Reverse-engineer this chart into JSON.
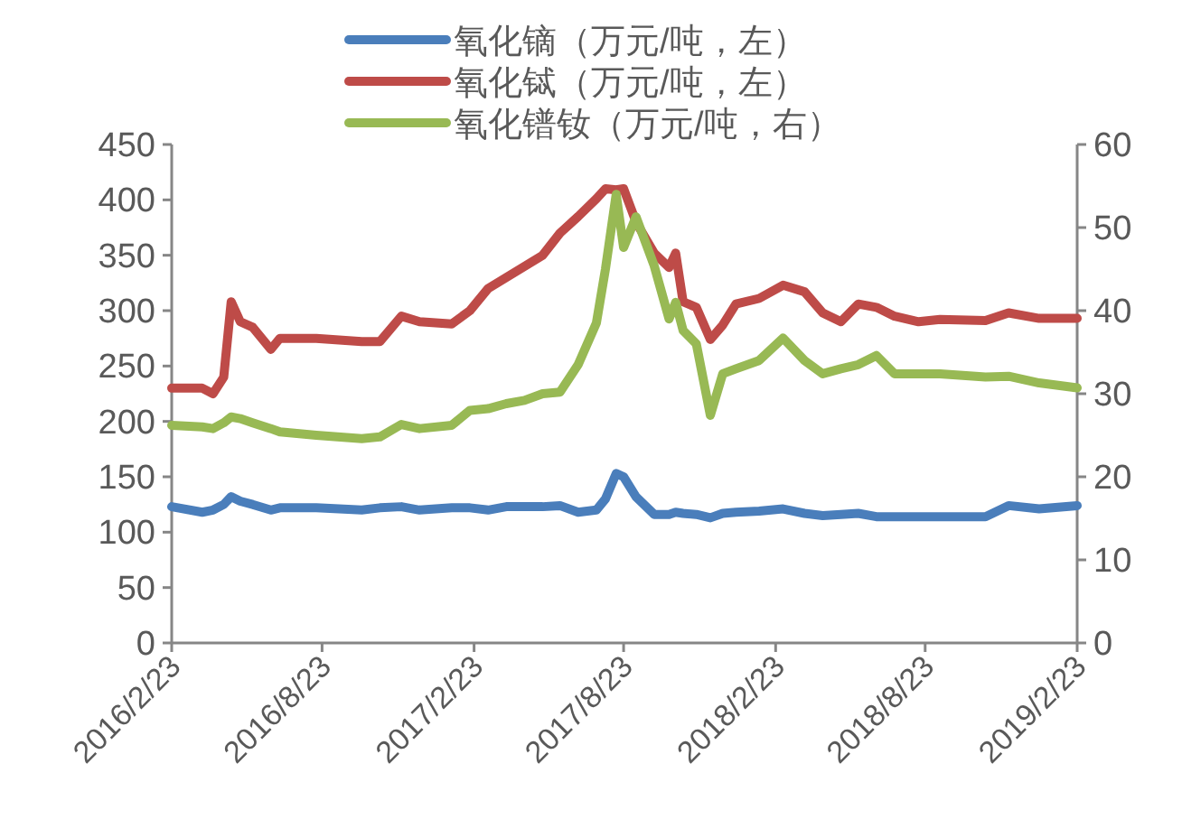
{
  "chart_data": {
    "type": "line",
    "legend": "top",
    "grid": false,
    "x": [
      "2016-02-23",
      "2016-03-31",
      "2016-04-13",
      "2016-04-26",
      "2016-05-05",
      "2016-05-16",
      "2016-05-31",
      "2016-06-22",
      "2016-07-03",
      "2016-08-16",
      "2016-10-10",
      "2016-11-01",
      "2016-11-27",
      "2016-12-19",
      "2017-01-27",
      "2017-02-18",
      "2017-03-12",
      "2017-04-03",
      "2017-04-25",
      "2017-05-17",
      "2017-06-07",
      "2017-06-29",
      "2017-07-21",
      "2017-08-01",
      "2017-08-14",
      "2017-08-23",
      "2017-09-07",
      "2017-09-29",
      "2017-10-17",
      "2017-10-25",
      "2017-11-03",
      "2017-11-19",
      "2017-12-06",
      "2017-12-21",
      "2018-01-06",
      "2018-02-03",
      "2018-03-04",
      "2018-03-30",
      "2018-04-21",
      "2018-05-13",
      "2018-06-03",
      "2018-06-25",
      "2018-07-17",
      "2018-08-15",
      "2018-09-10",
      "2018-11-04",
      "2018-12-02",
      "2019-01-08",
      "2019-02-23"
    ],
    "xlim": [
      "2016-02-23",
      "2019-02-23"
    ],
    "xticks": [
      {
        "value": "2016-02-23",
        "label": "2016/2/23"
      },
      {
        "value": "2016-08-23",
        "label": "2016/8/23"
      },
      {
        "value": "2017-02-23",
        "label": "2017/2/23"
      },
      {
        "value": "2017-08-23",
        "label": "2017/8/23"
      },
      {
        "value": "2018-02-23",
        "label": "2018/2/23"
      },
      {
        "value": "2018-08-23",
        "label": "2018/8/23"
      },
      {
        "value": "2019-02-23",
        "label": "2019/2/23"
      }
    ],
    "ylim": [
      0,
      450
    ],
    "yticks": [
      0,
      50,
      100,
      150,
      200,
      250,
      300,
      350,
      400,
      450
    ],
    "y2lim": [
      0,
      60
    ],
    "y2ticks": [
      0,
      10,
      20,
      30,
      40,
      50,
      60
    ],
    "series": [
      {
        "name": "氧化镝（万元/吨，左）",
        "color": "#4a7ebb",
        "values": [
          123,
          118,
          120,
          125,
          132,
          128,
          125,
          120,
          122,
          122,
          120,
          122,
          123,
          120,
          122,
          122,
          120,
          123,
          123,
          123,
          124,
          118,
          120,
          130,
          153,
          150,
          132,
          116,
          116,
          118,
          117,
          116,
          113,
          117,
          118,
          119,
          121,
          117,
          115,
          116,
          117,
          114,
          114,
          114,
          114,
          114,
          124,
          121,
          124
        ]
      },
      {
        "name": "氧化铽（万元/吨，左）",
        "color": "#be4b48",
        "values": [
          230,
          230,
          225,
          240,
          308,
          290,
          285,
          265,
          275,
          275,
          272,
          272,
          295,
          290,
          288,
          300,
          320,
          330,
          340,
          350,
          370,
          385,
          401,
          410,
          409,
          410,
          380,
          352,
          339,
          352,
          308,
          303,
          274,
          287,
          306,
          311,
          323,
          317,
          298,
          290,
          306,
          303,
          295,
          290,
          292,
          291,
          298,
          293,
          293
        ]
      },
      {
        "name": "氧化镨钕（万元/吨，右）",
        "color": "#98b954",
        "axis": "y2",
        "values": [
          26.2,
          26,
          25.8,
          26.5,
          27.2,
          27,
          26.5,
          25.8,
          25.4,
          25,
          24.6,
          24.8,
          26.3,
          25.8,
          26.2,
          28,
          28.2,
          28.8,
          29.2,
          30,
          30.2,
          33.5,
          38.5,
          45,
          54,
          47.6,
          51.3,
          45.4,
          39,
          41,
          37.6,
          36,
          27.4,
          32.4,
          33,
          34,
          36.7,
          34,
          32.4,
          33,
          33.5,
          34.6,
          32.4,
          32.4,
          32.4,
          32,
          32.1,
          31.3,
          30.7
        ]
      }
    ]
  }
}
